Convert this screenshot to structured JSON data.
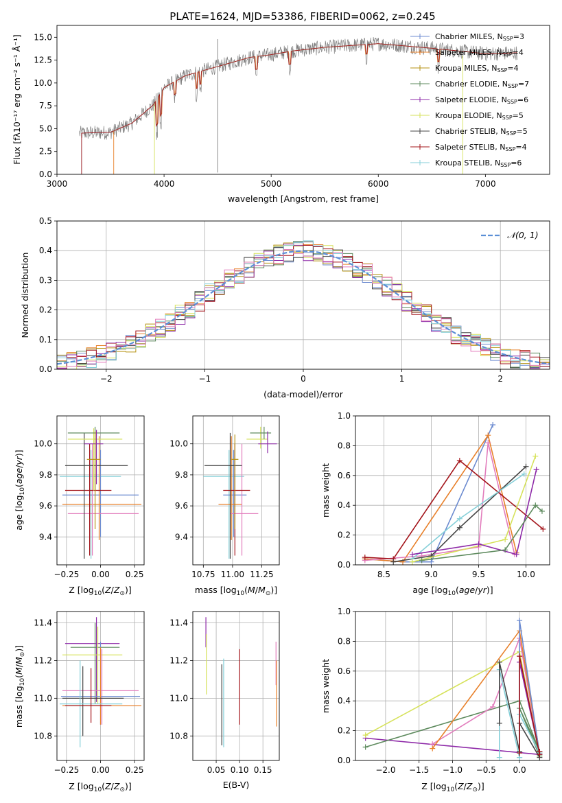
{
  "figure": {
    "title": "PLATE=1624, MJD=53386, FIBERID=0062, z=0.245"
  },
  "colors": {
    "chabrier_miles": "#6c8bd0",
    "salpeter_miles": "#e8802a",
    "kroupa_miles": "#b59212",
    "chabrier_elodie": "#5d8a5d",
    "salpeter_elodie": "#8e2aa8",
    "kroupa_elodie": "#d6e25a",
    "chabrier_stelib": "#444444",
    "salpeter_stelib": "#a3141a",
    "kroupa_stelib": "#84cfd8",
    "pink": "#e27cbc",
    "gauss": "#5b8fd6"
  },
  "chart_data": [
    {
      "id": "spectrum",
      "type": "line",
      "xlabel": "wavelength [Angstrom, rest frame]",
      "ylabel": "Flux [fλ10⁻¹⁷ erg cm⁻² s⁻¹ Å⁻¹]",
      "xlim": [
        3000,
        7600
      ],
      "ylim": [
        0,
        16.3
      ],
      "xticks": [
        "3000",
        "4000",
        "5000",
        "6000",
        "7000"
      ],
      "yticks": [
        "0.0",
        "2.5",
        "5.0",
        "7.5",
        "10.0",
        "12.5",
        "15.0"
      ],
      "legend_position": "right",
      "legend": [
        {
          "label": "Chabrier MILES, N",
          "sub": "SSP",
          "tail": "=3"
        },
        {
          "label": "Salpeter MILES, N",
          "sub": "SSP",
          "tail": "=4"
        },
        {
          "label": "Kroupa MILES, N",
          "sub": "SSP",
          "tail": "=4"
        },
        {
          "label": "Chabrier ELODIE, N",
          "sub": "SSP",
          "tail": "=7"
        },
        {
          "label": "Salpeter ELODIE, N",
          "sub": "SSP",
          "tail": "=6"
        },
        {
          "label": "Kroupa ELODIE, N",
          "sub": "SSP",
          "tail": "=5"
        },
        {
          "label": "Chabrier STELIB, N",
          "sub": "SSP",
          "tail": "=5"
        },
        {
          "label": "Salpeter STELIB, N",
          "sub": "SSP",
          "tail": "=4"
        },
        {
          "label": "Kroupa STELIB, N",
          "sub": "SSP",
          "tail": "=6"
        }
      ],
      "continuum": [
        [
          3200,
          4.5
        ],
        [
          3500,
          4.6
        ],
        [
          3700,
          5.6
        ],
        [
          3900,
          7.6
        ],
        [
          4000,
          9.5
        ],
        [
          4200,
          10.8
        ],
        [
          4500,
          11.8
        ],
        [
          4800,
          12.8
        ],
        [
          5000,
          13.1
        ],
        [
          5200,
          13.5
        ],
        [
          5500,
          13.9
        ],
        [
          6000,
          14.3
        ],
        [
          6500,
          13.8
        ],
        [
          7000,
          13.2
        ],
        [
          7300,
          13.3
        ]
      ]
    },
    {
      "id": "residuals",
      "type": "line",
      "xlabel": "(data-model)/error",
      "ylabel": "Normed distribution",
      "xlim": [
        -2.5,
        2.5
      ],
      "ylim": [
        0,
        0.5
      ],
      "xticks": [
        "−2",
        "−1",
        "0",
        "1",
        "2"
      ],
      "yticks": [
        "0.0",
        "0.1",
        "0.2",
        "0.3",
        "0.4",
        "0.5"
      ],
      "grid": true,
      "legend_position": "top-right",
      "legend_label": "𝒩(0, 1)",
      "bin_width": 0.1
    },
    {
      "id": "age_vs_Z",
      "type": "scatter",
      "xlabel": "Z [log₁₀(Z/Z⊙)]",
      "ylabel": "age  [log₁₀(age/yr)]",
      "xlim": [
        -0.32,
        0.32
      ],
      "ylim": [
        9.22,
        10.18
      ],
      "xticks": [
        "−0.25",
        "0.00",
        "0.25"
      ],
      "yticks": [
        "9.4",
        "9.6",
        "9.8",
        "10.0"
      ],
      "grid": true,
      "points": [
        {
          "c": "kroupa_stelib",
          "y": 9.79,
          "x0": -0.3,
          "x1": 0.15,
          "y0": 9.26,
          "y1": 9.96,
          "x": -0.07
        },
        {
          "c": "chabrier_miles",
          "y": 9.67,
          "x0": -0.28,
          "x1": 0.28,
          "y0": 9.4,
          "y1": 9.96,
          "x": 0.0
        },
        {
          "c": "salpeter_miles",
          "y": 9.61,
          "x0": -0.28,
          "x1": 0.3,
          "y0": 9.38,
          "y1": 10.05,
          "x": -0.01
        },
        {
          "c": "pink",
          "y": 9.55,
          "x0": -0.24,
          "x1": 0.28,
          "y0": 9.28,
          "y1": 10.0,
          "x": -0.06
        },
        {
          "c": "salpeter_stelib",
          "y": 9.7,
          "x0": -0.26,
          "x1": 0.08,
          "y0": 9.28,
          "y1": 10.0,
          "x": -0.08
        },
        {
          "c": "chabrier_stelib",
          "y": 9.86,
          "x0": -0.26,
          "x1": 0.2,
          "y0": 9.26,
          "y1": 10.07,
          "x": -0.12
        },
        {
          "c": "kroupa_elodie",
          "y": 10.03,
          "x0": -0.24,
          "x1": 0.16,
          "y0": 9.7,
          "y1": 10.1,
          "x": -0.05
        },
        {
          "c": "chabrier_elodie",
          "y": 10.07,
          "x0": -0.24,
          "x1": 0.14,
          "y0": 9.7,
          "y1": 10.11,
          "x": -0.04
        },
        {
          "c": "salpeter_elodie",
          "y": 10.0,
          "x0": -0.12,
          "x1": 0.02,
          "y0": 9.74,
          "y1": 10.09,
          "x": -0.03
        },
        {
          "c": "kroupa_miles",
          "y": 9.9,
          "x0": -0.1,
          "x1": 0.0,
          "y0": 9.45,
          "y1": 10.08,
          "x": -0.04
        }
      ]
    },
    {
      "id": "age_vs_mass",
      "type": "scatter",
      "xlabel": "mass [log₁₀(M/M⊙)]",
      "ylabel": "",
      "xlim": [
        10.66,
        11.4
      ],
      "ylim": [
        9.22,
        10.18
      ],
      "xticks": [
        "10.75",
        "11.00",
        "11.25"
      ],
      "yticks": [
        "9.4",
        "9.6",
        "9.8",
        "10.0"
      ],
      "grid": true,
      "points": [
        {
          "c": "kroupa_stelib",
          "y": 9.79,
          "x0": 10.75,
          "x1": 11.1,
          "y0": 9.26,
          "y1": 9.96,
          "x": 10.97
        },
        {
          "c": "chabrier_miles",
          "y": 9.67,
          "x0": 10.92,
          "x1": 11.12,
          "y0": 9.4,
          "y1": 9.96,
          "x": 11.01
        },
        {
          "c": "salpeter_miles",
          "y": 9.61,
          "x0": 10.88,
          "x1": 11.08,
          "y0": 9.38,
          "y1": 10.05,
          "x": 10.99
        },
        {
          "c": "pink",
          "y": 9.55,
          "x0": 10.98,
          "x1": 11.22,
          "y0": 9.28,
          "y1": 10.0,
          "x": 11.08
        },
        {
          "c": "salpeter_stelib",
          "y": 9.7,
          "x0": 10.92,
          "x1": 11.15,
          "y0": 9.28,
          "y1": 10.0,
          "x": 11.02
        },
        {
          "c": "chabrier_stelib",
          "y": 9.86,
          "x0": 10.76,
          "x1": 11.08,
          "y0": 9.26,
          "y1": 10.07,
          "x": 10.98
        },
        {
          "c": "kroupa_elodie",
          "y": 10.03,
          "x0": 11.12,
          "x1": 11.3,
          "y0": 9.97,
          "y1": 10.11,
          "x": 11.24
        },
        {
          "c": "chabrier_elodie",
          "y": 10.07,
          "x0": 11.15,
          "x1": 11.33,
          "y0": 10.03,
          "y1": 10.11,
          "x": 11.27
        },
        {
          "c": "salpeter_elodie",
          "y": 10.0,
          "x0": 11.22,
          "x1": 11.38,
          "y0": 9.94,
          "y1": 10.08,
          "x": 11.3
        },
        {
          "c": "kroupa_miles",
          "y": 9.9,
          "x0": 10.99,
          "x1": 11.05,
          "y0": 9.45,
          "y1": 10.06,
          "x": 11.02
        }
      ]
    },
    {
      "id": "weight_vs_age",
      "type": "line",
      "xlabel": "age  [log₁₀(age/yr)]",
      "ylabel": "mass weight",
      "xlim": [
        8.2,
        10.25
      ],
      "ylim": [
        0,
        1.0
      ],
      "xticks": [
        "8.5",
        "9.0",
        "9.5",
        "10.0"
      ],
      "yticks": [
        "0.0",
        "0.2",
        "0.4",
        "0.6",
        "0.8",
        "1.0"
      ],
      "grid": true,
      "series": [
        {
          "c": "chabrier_miles",
          "x": [
            8.3,
            8.7,
            9.0,
            9.65
          ],
          "y": [
            0.04,
            0.02,
            0.02,
            0.94
          ]
        },
        {
          "c": "salpeter_miles",
          "x": [
            8.3,
            8.7,
            9.6,
            9.9
          ],
          "y": [
            0.04,
            0.02,
            0.87,
            0.08
          ]
        },
        {
          "c": "pink",
          "x": [
            8.3,
            8.9,
            9.5,
            9.6,
            9.88
          ],
          "y": [
            0.03,
            0.06,
            0.12,
            0.82,
            0.07
          ]
        },
        {
          "c": "salpeter_stelib",
          "x": [
            8.3,
            8.6,
            9.3,
            10.18
          ],
          "y": [
            0.05,
            0.04,
            0.7,
            0.24
          ]
        },
        {
          "c": "chabrier_stelib",
          "x": [
            8.6,
            9.0,
            9.3,
            10.0
          ],
          "y": [
            0.02,
            0.06,
            0.25,
            0.66
          ]
        },
        {
          "c": "kroupa_stelib",
          "x": [
            8.8,
            9.3,
            9.98
          ],
          "y": [
            0.04,
            0.31,
            0.61
          ]
        },
        {
          "c": "kroupa_elodie",
          "x": [
            8.8,
            9.78,
            10.1
          ],
          "y": [
            0.02,
            0.17,
            0.73
          ]
        },
        {
          "c": "salpeter_elodie",
          "x": [
            8.8,
            9.5,
            9.9,
            10.11
          ],
          "y": [
            0.07,
            0.14,
            0.07,
            0.64
          ]
        },
        {
          "c": "chabrier_elodie",
          "x": [
            8.9,
            9.78,
            10.1,
            10.17
          ],
          "y": [
            0.03,
            0.1,
            0.4,
            0.36
          ]
        }
      ]
    },
    {
      "id": "mass_vs_Z",
      "type": "scatter",
      "xlabel": "Z [log₁₀(Z/Z⊙)]",
      "ylabel": "mass [log₁₀(M/M⊙)]",
      "xlim": [
        -0.32,
        0.32
      ],
      "ylim": [
        10.67,
        11.46
      ],
      "xticks": [
        "−0.25",
        "0.00",
        "0.25"
      ],
      "yticks": [
        "10.8",
        "11.0",
        "11.2",
        "11.4"
      ],
      "grid": true,
      "points": [
        {
          "c": "salpeter_elodie",
          "y": 11.29,
          "x0": -0.26,
          "x1": 0.14,
          "y0": 10.98,
          "y1": 11.43,
          "x": -0.03
        },
        {
          "c": "chabrier_elodie",
          "y": 11.27,
          "x0": -0.22,
          "x1": 0.14,
          "y0": 10.97,
          "y1": 11.4,
          "x": -0.04
        },
        {
          "c": "kroupa_elodie",
          "y": 11.23,
          "x0": -0.28,
          "x1": 0.16,
          "y0": 10.97,
          "y1": 11.38,
          "x": -0.02
        },
        {
          "c": "pink",
          "y": 11.04,
          "x0": -0.28,
          "x1": 0.28,
          "y0": 10.86,
          "y1": 11.26,
          "x": 0.01
        },
        {
          "c": "chabrier_miles",
          "y": 11.01,
          "x0": -0.29,
          "x1": 0.29,
          "y0": 10.86,
          "y1": 11.3,
          "x": 0.0
        },
        {
          "c": "salpeter_miles",
          "y": 10.96,
          "x0": -0.28,
          "x1": 0.3,
          "y0": 10.86,
          "y1": 11.27,
          "x": 0.0
        },
        {
          "c": "chabrier_stelib",
          "y": 11.0,
          "x0": -0.28,
          "x1": 0.17,
          "y0": 10.8,
          "y1": 11.17,
          "x": -0.13
        },
        {
          "c": "kroupa_stelib",
          "y": 10.97,
          "x0": -0.3,
          "x1": 0.16,
          "y0": 10.74,
          "y1": 11.2,
          "x": -0.15
        },
        {
          "c": "salpeter_stelib",
          "y": 10.96,
          "x0": -0.26,
          "x1": 0.08,
          "y0": 10.87,
          "y1": 11.16,
          "x": -0.07
        }
      ]
    },
    {
      "id": "mass_vs_ebv",
      "type": "scatter",
      "xlabel": "E(B-V)",
      "ylabel": "",
      "xlim": [
        0.0,
        0.185
      ],
      "ylim": [
        10.67,
        11.46
      ],
      "xticks": [
        "0.05",
        "0.10",
        "0.15"
      ],
      "yticks": [
        "10.8",
        "11.0",
        "11.2",
        "11.4"
      ],
      "grid": true,
      "points": [
        {
          "c": "salpeter_elodie",
          "x": 0.028,
          "y0": 11.27,
          "y1": 11.43
        },
        {
          "c": "kroupa_elodie",
          "x": 0.029,
          "y0": 11.02,
          "y1": 11.34
        },
        {
          "c": "chabrier_stelib",
          "x": 0.062,
          "y0": 10.75,
          "y1": 11.18
        },
        {
          "c": "kroupa_stelib",
          "x": 0.066,
          "y0": 10.74,
          "y1": 11.21
        },
        {
          "c": "salpeter_stelib",
          "x": 0.1,
          "y0": 10.86,
          "y1": 11.26
        },
        {
          "c": "pink",
          "x": 0.178,
          "y0": 11.07,
          "y1": 11.3
        },
        {
          "c": "salpeter_miles",
          "x": 0.179,
          "y0": 10.85,
          "y1": 11.2
        }
      ]
    },
    {
      "id": "weight_vs_Z",
      "type": "line",
      "xlabel": "Z [log₁₀(Z/Z⊙)]",
      "ylabel": "mass weight",
      "xlim": [
        -2.45,
        0.45
      ],
      "ylim": [
        0,
        1.0
      ],
      "xticks": [
        "−2.0",
        "−1.5",
        "−1.0",
        "−0.5",
        "0.0"
      ],
      "yticks": [
        "0.0",
        "0.2",
        "0.4",
        "0.6",
        "0.8",
        "1.0"
      ],
      "grid": true,
      "series": [
        {
          "c": "salpeter_elodie",
          "x": [
            -2.3,
            0.3,
            0.0,
            0.3
          ],
          "y": [
            0.15,
            0.04,
            0.66,
            0.05
          ]
        },
        {
          "c": "kroupa_elodie",
          "x": [
            -2.3,
            0.0,
            0.3
          ],
          "y": [
            0.17,
            0.73,
            0.03
          ]
        },
        {
          "c": "chabrier_elodie",
          "x": [
            -2.3,
            0.0,
            0.3,
            0.0,
            0.3
          ],
          "y": [
            0.09,
            0.4,
            0.06,
            0.35,
            0.03
          ]
        },
        {
          "c": "pink",
          "x": [
            -1.3,
            -0.4,
            0.0,
            0.3
          ],
          "y": [
            0.11,
            0.36,
            0.82,
            0.04
          ]
        },
        {
          "c": "salpeter_miles",
          "x": [
            -1.3,
            0.0,
            0.3
          ],
          "y": [
            0.08,
            0.87,
            0.05
          ]
        },
        {
          "c": "chabrier_miles",
          "x": [
            0.0,
            0.0,
            0.3
          ],
          "y": [
            0.02,
            0.94,
            0.04
          ]
        },
        {
          "c": "kroupa_stelib",
          "x": [
            -0.3,
            -0.3,
            0.0,
            0.0,
            0.3
          ],
          "y": [
            0.02,
            0.61,
            0.02,
            0.31,
            0.05
          ]
        },
        {
          "c": "chabrier_stelib",
          "x": [
            -0.3,
            -0.3,
            0.0,
            0.0,
            0.3
          ],
          "y": [
            0.25,
            0.66,
            0.06,
            0.25,
            0.02
          ]
        },
        {
          "c": "salpeter_stelib",
          "x": [
            0.0,
            0.0,
            0.3,
            0.3
          ],
          "y": [
            0.05,
            0.7,
            0.04,
            0.06
          ]
        }
      ]
    }
  ]
}
